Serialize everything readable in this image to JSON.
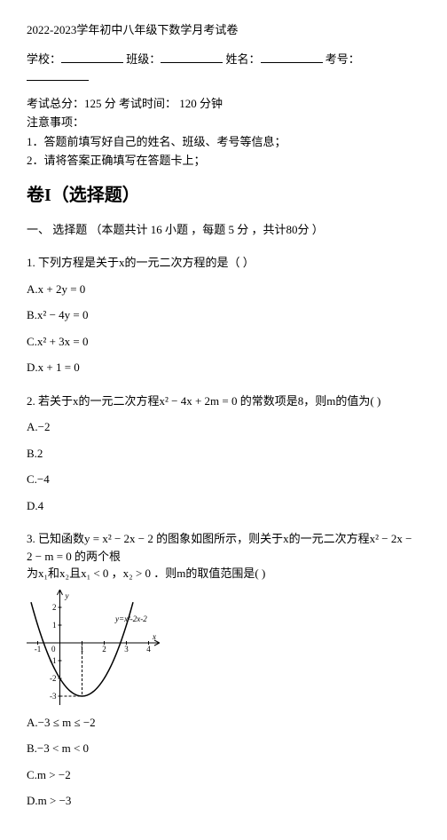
{
  "header": {
    "title": "2022-2023学年初中八年级下数学月考试卷",
    "school_label": "学校：",
    "class_label": "班级：",
    "name_label": "姓名：",
    "number_label": "考号：",
    "blank_width_school": 70,
    "blank_width_class": 70,
    "blank_width_name": 70,
    "blank_width_number": 70,
    "score_line": "考试总分：125 分 考试时间： 120 分钟",
    "notice_title": "注意事项：",
    "notice_1": "1．答题前填写好自己的姓名、班级、考号等信息；",
    "notice_2": "2．请将答案正确填写在答题卡上；"
  },
  "part1": {
    "title": "卷I（选择题）",
    "section_header": "一、 选择题 （本题共计 16 小题 ，每题 5 分 ，共计80分 ）"
  },
  "q1": {
    "stem": "1. 下列方程是关于x的一元二次方程的是（        ）",
    "A": "A.x + 2y = 0",
    "B": "B.x² − 4y = 0",
    "C": "C.x² + 3x  = 0",
    "D": "D.x + 1 = 0"
  },
  "q2": {
    "stem": "2. 若关于x的一元二次方程x² − 4x + 2m = 0 的常数项是8，则m的值为(        )",
    "A": "A.−2",
    "B": "B.2",
    "C": "C.−4",
    "D": "D.4"
  },
  "q3": {
    "stem_line1": "3. 已知函数y = x² − 2x − 2 的图象如图所示，则关于x的一元二次方程x² − 2x − 2 − m = 0 的两个根",
    "stem_line2": "为x₁和x₂且x₁ < 0 ，x₂ > 0 ．则m的取值范围是(        )",
    "graph": {
      "width": 150,
      "height": 130,
      "bg": "#ffffff",
      "axis_color": "#000000",
      "curve_color": "#000000",
      "dash_color": "#000000",
      "label_y_axis": "y",
      "label_x_axis": "x",
      "ticks_x": [
        "-1",
        "0",
        "1",
        "2",
        "3",
        "4"
      ],
      "ticks_y_pos": [
        "1",
        "2"
      ],
      "ticks_y_neg": [
        "-1",
        "-2",
        "-3"
      ],
      "formula": "y=x²-2x-2",
      "font_size": 9
    },
    "A": "A.−3 ≤ m ≤ −2",
    "B": "B.−3 < m < 0",
    "C": "C.m > −2",
    "D": "D.m > −3"
  }
}
